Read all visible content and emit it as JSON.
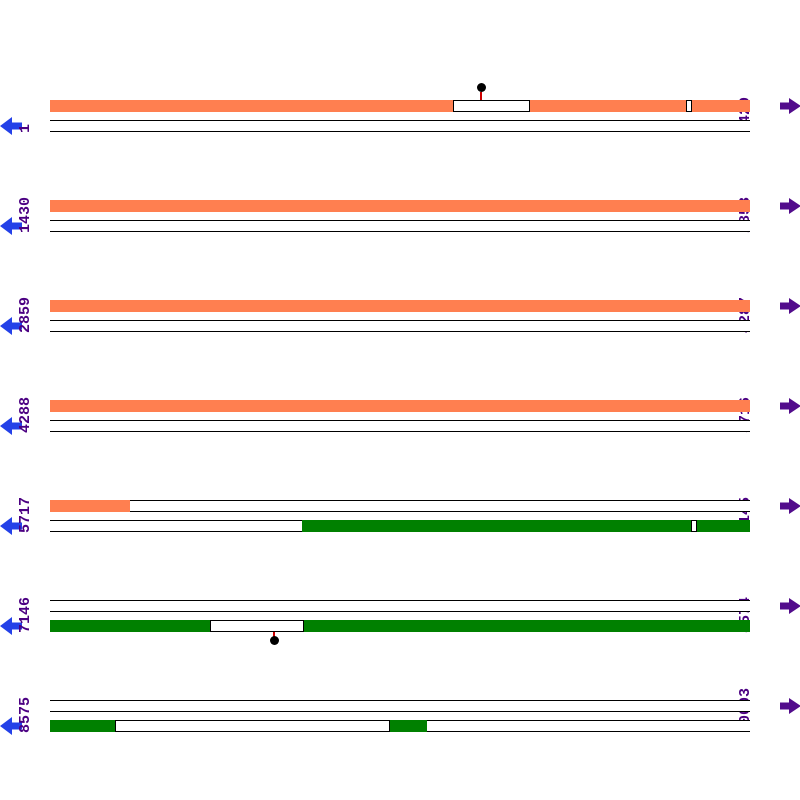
{
  "map": {
    "description": "linear-sequence-feature-map",
    "row_span_bp": 1429,
    "rows": [
      {
        "start_label": "1",
        "end_label": "1429",
        "forward_segments": [
          {
            "from": 0.0,
            "to": 0.576,
            "type": "filled"
          },
          {
            "from": 0.576,
            "to": 0.686,
            "type": "open"
          },
          {
            "from": 0.686,
            "to": 0.909,
            "type": "filled"
          },
          {
            "from": 0.909,
            "to": 0.917,
            "type": "open"
          },
          {
            "from": 0.917,
            "to": 1.0,
            "type": "filled"
          }
        ],
        "reverse_segments": [],
        "markers": [
          {
            "strand": "forward",
            "pos": 0.616
          }
        ]
      },
      {
        "start_label": "1430",
        "end_label": "2858",
        "forward_segments": [
          {
            "from": 0.0,
            "to": 1.0,
            "type": "filled"
          }
        ],
        "reverse_segments": [],
        "markers": []
      },
      {
        "start_label": "2859",
        "end_label": "4287",
        "forward_segments": [
          {
            "from": 0.0,
            "to": 1.0,
            "type": "filled"
          }
        ],
        "reverse_segments": [],
        "markers": []
      },
      {
        "start_label": "4288",
        "end_label": "5716",
        "forward_segments": [
          {
            "from": 0.0,
            "to": 1.0,
            "type": "filled"
          }
        ],
        "reverse_segments": [],
        "markers": []
      },
      {
        "start_label": "5717",
        "end_label": "7145",
        "forward_segments": [
          {
            "from": 0.0,
            "to": 0.114,
            "type": "filled"
          }
        ],
        "reverse_segments": [
          {
            "from": 0.36,
            "to": 0.916,
            "type": "filled"
          },
          {
            "from": 0.916,
            "to": 0.924,
            "type": "open"
          },
          {
            "from": 0.924,
            "to": 1.0,
            "type": "filled"
          }
        ],
        "markers": []
      },
      {
        "start_label": "7146",
        "end_label": "8574",
        "forward_segments": [],
        "reverse_segments": [
          {
            "from": 0.0,
            "to": 0.229,
            "type": "filled"
          },
          {
            "from": 0.229,
            "to": 0.363,
            "type": "open"
          },
          {
            "from": 0.363,
            "to": 1.0,
            "type": "filled"
          }
        ],
        "markers": [
          {
            "strand": "reverse",
            "pos": 0.32
          }
        ]
      },
      {
        "start_label": "8575",
        "end_label": "10003",
        "forward_segments": [],
        "reverse_segments": [
          {
            "from": 0.0,
            "to": 0.093,
            "type": "filled"
          },
          {
            "from": 0.093,
            "to": 0.486,
            "type": "open"
          },
          {
            "from": 0.486,
            "to": 0.539,
            "type": "filled"
          }
        ],
        "markers": []
      }
    ]
  },
  "colors": {
    "forward_feature": "#FF7F50",
    "reverse_feature": "#008000",
    "left_arrow": "#2441E8",
    "right_arrow": "#520C8C",
    "coordinate_text": "#4B0082",
    "marker_stem": "#CC0000",
    "marker_head": "#000000",
    "track_outline": "#000000",
    "background": "#FFFFFF"
  },
  "icons": {
    "left_arrow": "reverse-strand-left-arrow",
    "right_arrow": "forward-strand-right-arrow",
    "marker": "site-marker-lollipop"
  }
}
